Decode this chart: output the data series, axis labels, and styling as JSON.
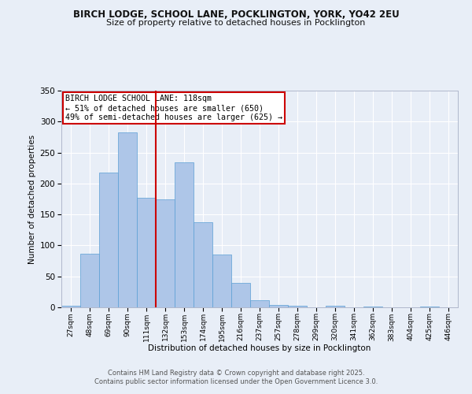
{
  "title1": "BIRCH LODGE, SCHOOL LANE, POCKLINGTON, YORK, YO42 2EU",
  "title2": "Size of property relative to detached houses in Pocklington",
  "xlabel": "Distribution of detached houses by size in Pocklington",
  "ylabel": "Number of detached properties",
  "categories": [
    "27sqm",
    "48sqm",
    "69sqm",
    "90sqm",
    "111sqm",
    "132sqm",
    "153sqm",
    "174sqm",
    "195sqm",
    "216sqm",
    "237sqm",
    "257sqm",
    "278sqm",
    "299sqm",
    "320sqm",
    "341sqm",
    "362sqm",
    "383sqm",
    "404sqm",
    "425sqm",
    "446sqm"
  ],
  "values": [
    2,
    87,
    218,
    283,
    177,
    175,
    234,
    138,
    85,
    40,
    11,
    4,
    2,
    0,
    2,
    0,
    1,
    0,
    0,
    1,
    0
  ],
  "bar_color": "#aec6e8",
  "bar_edge_color": "#5a9fd4",
  "bg_color": "#e8eef7",
  "grid_color": "#ffffff",
  "fig_bg_color": "#e8eef7",
  "annotation_text": "BIRCH LODGE SCHOOL LANE: 118sqm\n← 51% of detached houses are smaller (650)\n49% of semi-detached houses are larger (625) →",
  "vline_x_index": 4.5,
  "vline_color": "#cc0000",
  "annotation_box_color": "#cc0000",
  "ylim": [
    0,
    350
  ],
  "yticks": [
    0,
    50,
    100,
    150,
    200,
    250,
    300,
    350
  ],
  "footnote1": "Contains HM Land Registry data © Crown copyright and database right 2025.",
  "footnote2": "Contains public sector information licensed under the Open Government Licence 3.0."
}
